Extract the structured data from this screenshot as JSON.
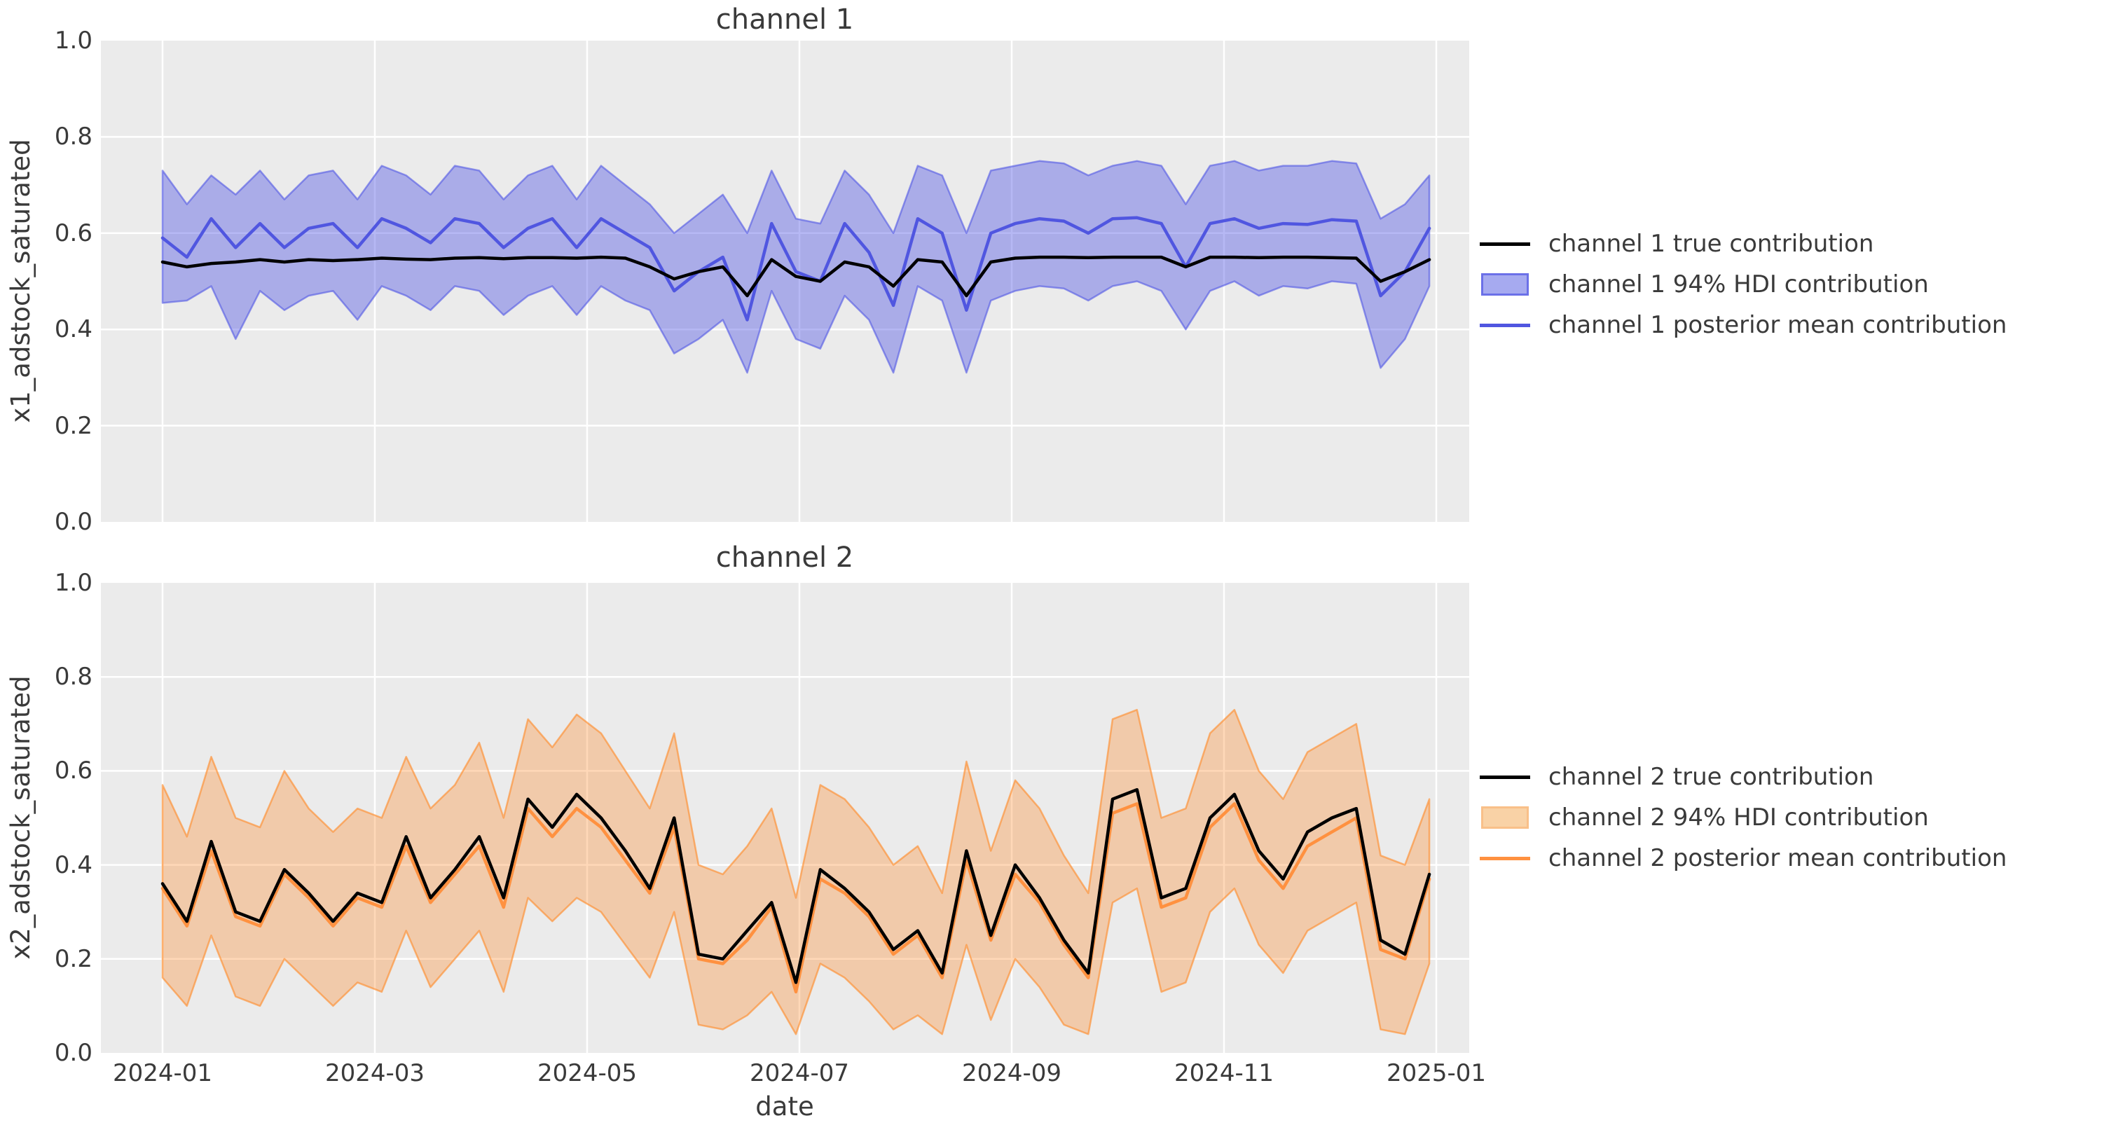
{
  "figure": {
    "background": "#ffffff",
    "axes_background": "#ebebeb",
    "grid_color": "#ffffff",
    "text_color": "#3a3a3a",
    "colors": {
      "true_line": "#000000",
      "ch1_mean_line": "#5056e0",
      "ch1_band_fill": "rgba(80,86,228,0.42)",
      "ch1_band_edge": "rgba(80,86,228,0.60)",
      "ch1_legend_patch_fill": "#a6aaf0",
      "ch1_legend_patch_edge": "#6b70e8",
      "ch2_mean_line": "#ff9140",
      "ch2_band_fill": "rgba(255,138,40,0.33)",
      "ch2_band_edge": "rgba(255,138,40,0.62)",
      "ch2_legend_patch_fill": "#f9d2a6",
      "ch2_legend_patch_edge": "#f9c089"
    }
  },
  "x_axis": {
    "label": "date",
    "tick_labels": [
      "2024-01",
      "2024-03",
      "2024-05",
      "2024-07",
      "2024-09",
      "2024-11",
      "2025-01"
    ]
  },
  "y_axis": {
    "tick_labels_top_to_bottom": [
      "1.0",
      "0.8",
      "0.6",
      "0.4",
      "0.2",
      "0.0"
    ]
  },
  "chart_data": [
    {
      "type": "line",
      "title": "channel 1",
      "xlabel": "date",
      "ylabel": "x1_adstock_saturated",
      "ylim": [
        0.0,
        1.0
      ],
      "grid": true,
      "legend_position": "outside-right-center",
      "x_tick_labels": [
        "2024-01",
        "2024-03",
        "2024-05",
        "2024-07",
        "2024-09",
        "2024-11",
        "2025-01"
      ],
      "y_tick_labels": [
        "0.0",
        "0.2",
        "0.4",
        "0.6",
        "0.8",
        "1.0"
      ],
      "x": [
        "2024-01-01",
        "2024-01-08",
        "2024-01-15",
        "2024-01-22",
        "2024-01-29",
        "2024-02-05",
        "2024-02-12",
        "2024-02-19",
        "2024-02-26",
        "2024-03-04",
        "2024-03-11",
        "2024-03-18",
        "2024-03-25",
        "2024-04-01",
        "2024-04-08",
        "2024-04-15",
        "2024-04-22",
        "2024-04-29",
        "2024-05-06",
        "2024-05-13",
        "2024-05-20",
        "2024-05-27",
        "2024-06-03",
        "2024-06-10",
        "2024-06-17",
        "2024-06-24",
        "2024-07-01",
        "2024-07-08",
        "2024-07-15",
        "2024-07-22",
        "2024-07-29",
        "2024-08-05",
        "2024-08-12",
        "2024-08-19",
        "2024-08-26",
        "2024-09-02",
        "2024-09-09",
        "2024-09-16",
        "2024-09-23",
        "2024-09-30",
        "2024-10-07",
        "2024-10-14",
        "2024-10-21",
        "2024-10-28",
        "2024-11-04",
        "2024-11-11",
        "2024-11-18",
        "2024-11-25",
        "2024-12-02",
        "2024-12-09",
        "2024-12-16",
        "2024-12-23",
        "2024-12-30"
      ],
      "series": [
        {
          "name": "channel 1 true contribution",
          "kind": "line",
          "color": "#000000",
          "values": [
            0.54,
            0.53,
            0.537,
            0.54,
            0.545,
            0.54,
            0.545,
            0.543,
            0.545,
            0.548,
            0.546,
            0.545,
            0.548,
            0.549,
            0.547,
            0.549,
            0.549,
            0.548,
            0.55,
            0.548,
            0.53,
            0.505,
            0.52,
            0.53,
            0.47,
            0.545,
            0.51,
            0.5,
            0.54,
            0.53,
            0.49,
            0.545,
            0.54,
            0.47,
            0.54,
            0.548,
            0.55,
            0.55,
            0.549,
            0.55,
            0.55,
            0.55,
            0.53,
            0.55,
            0.55,
            0.549,
            0.55,
            0.55,
            0.549,
            0.548,
            0.5,
            0.52,
            0.545
          ]
        },
        {
          "name": "channel 1 94% HDI contribution",
          "kind": "band",
          "fill": "rgba(80,86,228,0.42)",
          "edge": "rgba(80,86,228,0.60)",
          "lower": [
            0.455,
            0.46,
            0.49,
            0.38,
            0.48,
            0.44,
            0.47,
            0.48,
            0.42,
            0.49,
            0.47,
            0.44,
            0.49,
            0.48,
            0.43,
            0.47,
            0.49,
            0.43,
            0.49,
            0.46,
            0.44,
            0.35,
            0.38,
            0.42,
            0.31,
            0.48,
            0.38,
            0.36,
            0.47,
            0.42,
            0.31,
            0.49,
            0.46,
            0.31,
            0.46,
            0.48,
            0.49,
            0.485,
            0.46,
            0.49,
            0.5,
            0.48,
            0.4,
            0.48,
            0.5,
            0.47,
            0.49,
            0.485,
            0.5,
            0.495,
            0.32,
            0.38,
            0.49
          ],
          "upper": [
            0.73,
            0.66,
            0.72,
            0.68,
            0.73,
            0.67,
            0.72,
            0.73,
            0.67,
            0.74,
            0.72,
            0.68,
            0.74,
            0.73,
            0.67,
            0.72,
            0.74,
            0.67,
            0.74,
            0.7,
            0.66,
            0.6,
            0.64,
            0.68,
            0.6,
            0.73,
            0.63,
            0.62,
            0.73,
            0.68,
            0.6,
            0.74,
            0.72,
            0.6,
            0.73,
            0.74,
            0.75,
            0.745,
            0.72,
            0.74,
            0.75,
            0.74,
            0.66,
            0.74,
            0.75,
            0.73,
            0.74,
            0.74,
            0.75,
            0.745,
            0.63,
            0.66,
            0.72
          ]
        },
        {
          "name": "channel 1 posterior mean contribution",
          "kind": "line",
          "color": "#5056e0",
          "values": [
            0.59,
            0.55,
            0.63,
            0.57,
            0.62,
            0.57,
            0.61,
            0.62,
            0.57,
            0.63,
            0.61,
            0.58,
            0.63,
            0.62,
            0.57,
            0.61,
            0.63,
            0.57,
            0.63,
            0.6,
            0.57,
            0.48,
            0.52,
            0.55,
            0.42,
            0.62,
            0.52,
            0.5,
            0.62,
            0.56,
            0.45,
            0.63,
            0.6,
            0.44,
            0.6,
            0.62,
            0.63,
            0.625,
            0.6,
            0.63,
            0.632,
            0.62,
            0.53,
            0.62,
            0.63,
            0.61,
            0.62,
            0.618,
            0.628,
            0.625,
            0.47,
            0.52,
            0.61
          ]
        }
      ],
      "legend": [
        {
          "label": "channel 1 true contribution",
          "swatch": "line",
          "color": "#000000"
        },
        {
          "label": "channel 1 94% HDI contribution",
          "swatch": "patch",
          "fill": "#a6aaf0",
          "edge": "#6b70e8"
        },
        {
          "label": "channel 1 posterior mean contribution",
          "swatch": "line",
          "color": "#5056e0"
        }
      ]
    },
    {
      "type": "line",
      "title": "channel 2",
      "xlabel": "date",
      "ylabel": "x2_adstock_saturated",
      "ylim": [
        0.0,
        1.0
      ],
      "grid": true,
      "legend_position": "outside-right-center",
      "x_tick_labels": [
        "2024-01",
        "2024-03",
        "2024-05",
        "2024-07",
        "2024-09",
        "2024-11",
        "2025-01"
      ],
      "y_tick_labels": [
        "0.0",
        "0.2",
        "0.4",
        "0.6",
        "0.8",
        "1.0"
      ],
      "x": [
        "2024-01-01",
        "2024-01-08",
        "2024-01-15",
        "2024-01-22",
        "2024-01-29",
        "2024-02-05",
        "2024-02-12",
        "2024-02-19",
        "2024-02-26",
        "2024-03-04",
        "2024-03-11",
        "2024-03-18",
        "2024-03-25",
        "2024-04-01",
        "2024-04-08",
        "2024-04-15",
        "2024-04-22",
        "2024-04-29",
        "2024-05-06",
        "2024-05-13",
        "2024-05-20",
        "2024-05-27",
        "2024-06-03",
        "2024-06-10",
        "2024-06-17",
        "2024-06-24",
        "2024-07-01",
        "2024-07-08",
        "2024-07-15",
        "2024-07-22",
        "2024-07-29",
        "2024-08-05",
        "2024-08-12",
        "2024-08-19",
        "2024-08-26",
        "2024-09-02",
        "2024-09-09",
        "2024-09-16",
        "2024-09-23",
        "2024-09-30",
        "2024-10-07",
        "2024-10-14",
        "2024-10-21",
        "2024-10-28",
        "2024-11-04",
        "2024-11-11",
        "2024-11-18",
        "2024-11-25",
        "2024-12-02",
        "2024-12-09",
        "2024-12-16",
        "2024-12-23",
        "2024-12-30"
      ],
      "series": [
        {
          "name": "channel 2 true contribution",
          "kind": "line",
          "color": "#000000",
          "values": [
            0.36,
            0.28,
            0.45,
            0.3,
            0.28,
            0.39,
            0.34,
            0.28,
            0.34,
            0.32,
            0.46,
            0.33,
            0.39,
            0.46,
            0.33,
            0.54,
            0.48,
            0.55,
            0.5,
            0.43,
            0.35,
            0.5,
            0.21,
            0.2,
            0.26,
            0.32,
            0.15,
            0.39,
            0.35,
            0.3,
            0.22,
            0.26,
            0.17,
            0.43,
            0.25,
            0.4,
            0.33,
            0.24,
            0.17,
            0.54,
            0.56,
            0.33,
            0.35,
            0.5,
            0.55,
            0.43,
            0.37,
            0.47,
            0.5,
            0.52,
            0.24,
            0.21,
            0.38
          ]
        },
        {
          "name": "channel 2 94% HDI contribution",
          "kind": "band",
          "fill": "rgba(255,138,40,0.33)",
          "edge": "rgba(255,138,40,0.62)",
          "lower": [
            0.16,
            0.1,
            0.25,
            0.12,
            0.1,
            0.2,
            0.15,
            0.1,
            0.15,
            0.13,
            0.26,
            0.14,
            0.2,
            0.26,
            0.13,
            0.33,
            0.28,
            0.33,
            0.3,
            0.23,
            0.16,
            0.3,
            0.06,
            0.05,
            0.08,
            0.13,
            0.04,
            0.19,
            0.16,
            0.11,
            0.05,
            0.08,
            0.04,
            0.23,
            0.07,
            0.2,
            0.14,
            0.06,
            0.04,
            0.32,
            0.35,
            0.13,
            0.15,
            0.3,
            0.35,
            0.23,
            0.17,
            0.26,
            0.29,
            0.32,
            0.05,
            0.04,
            0.19
          ],
          "upper": [
            0.57,
            0.46,
            0.63,
            0.5,
            0.48,
            0.6,
            0.52,
            0.47,
            0.52,
            0.5,
            0.63,
            0.52,
            0.57,
            0.66,
            0.5,
            0.71,
            0.65,
            0.72,
            0.68,
            0.6,
            0.52,
            0.68,
            0.4,
            0.38,
            0.44,
            0.52,
            0.33,
            0.57,
            0.54,
            0.48,
            0.4,
            0.44,
            0.34,
            0.62,
            0.43,
            0.58,
            0.52,
            0.42,
            0.34,
            0.71,
            0.73,
            0.5,
            0.52,
            0.68,
            0.73,
            0.6,
            0.54,
            0.64,
            0.67,
            0.7,
            0.42,
            0.4,
            0.54
          ]
        },
        {
          "name": "channel 2 posterior mean contribution",
          "kind": "line",
          "color": "#ff9140",
          "values": [
            0.35,
            0.27,
            0.43,
            0.29,
            0.27,
            0.38,
            0.33,
            0.27,
            0.33,
            0.31,
            0.44,
            0.32,
            0.38,
            0.44,
            0.31,
            0.52,
            0.46,
            0.52,
            0.48,
            0.41,
            0.34,
            0.48,
            0.2,
            0.19,
            0.24,
            0.31,
            0.13,
            0.37,
            0.34,
            0.29,
            0.21,
            0.25,
            0.16,
            0.41,
            0.24,
            0.38,
            0.32,
            0.23,
            0.16,
            0.51,
            0.53,
            0.31,
            0.33,
            0.48,
            0.53,
            0.41,
            0.35,
            0.44,
            0.47,
            0.5,
            0.22,
            0.2,
            0.37
          ]
        }
      ],
      "legend": [
        {
          "label": "channel 2 true contribution",
          "swatch": "line",
          "color": "#000000"
        },
        {
          "label": "channel 2 94% HDI contribution",
          "swatch": "patch",
          "fill": "#f9d2a6",
          "edge": "#f9c089"
        },
        {
          "label": "channel 2 posterior mean contribution",
          "swatch": "line",
          "color": "#ff9140"
        }
      ]
    }
  ]
}
